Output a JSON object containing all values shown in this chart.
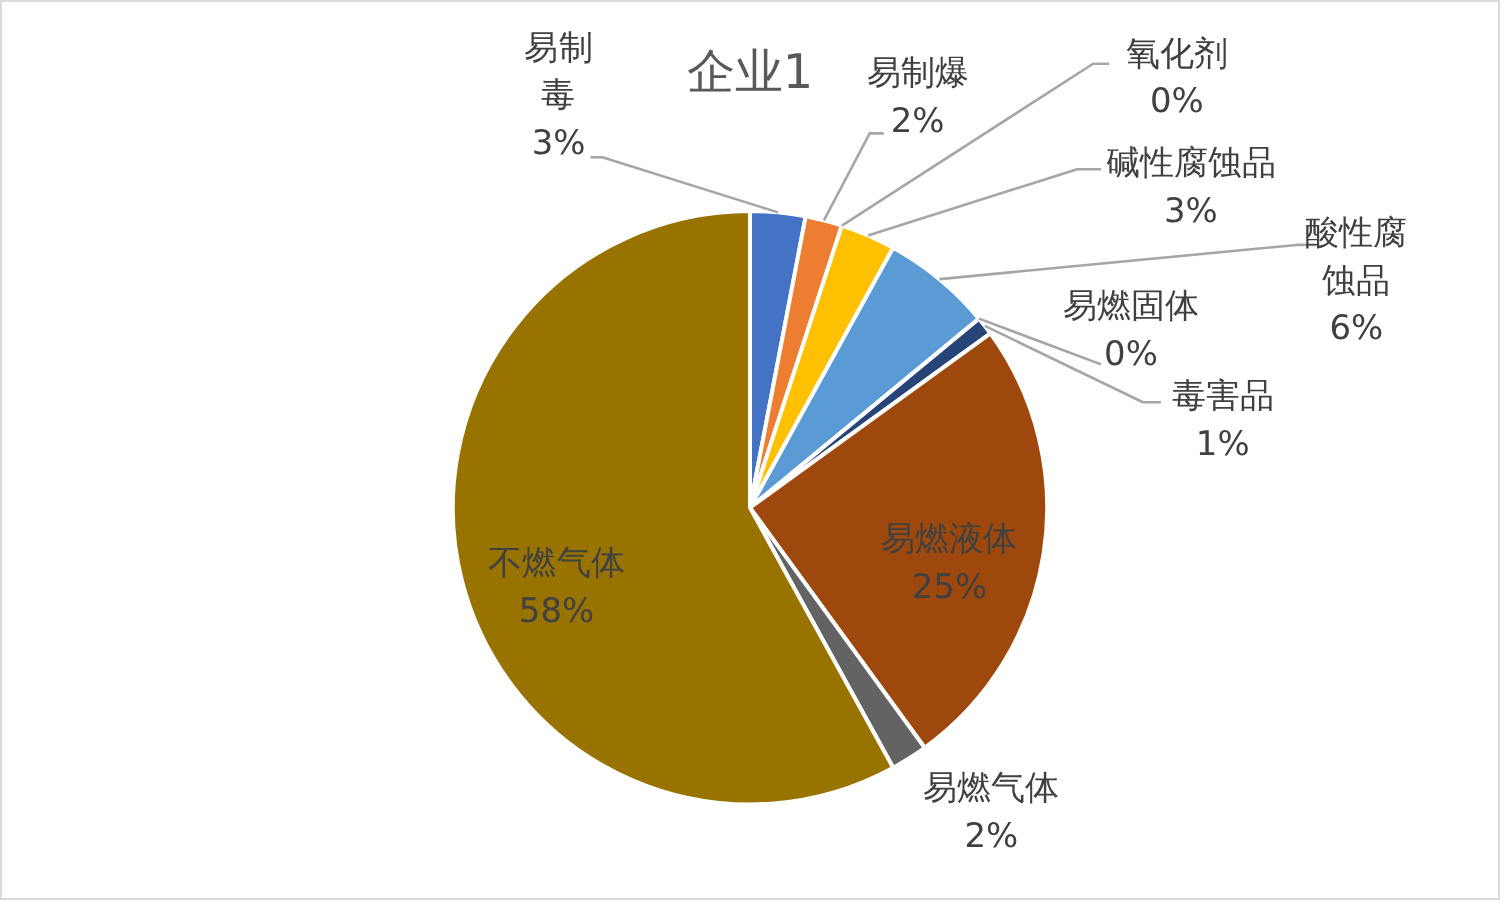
{
  "chart_data": {
    "type": "pie",
    "title": "企业1",
    "categories": [
      "易制毒",
      "易制爆",
      "氧化剂",
      "碱性腐蚀品",
      "酸性腐蚀品",
      "易燃固体",
      "毒害品",
      "易燃液体",
      "易燃气体",
      "不燃气体"
    ],
    "values": [
      3,
      2,
      0,
      3,
      6,
      0,
      1,
      25,
      2,
      58
    ],
    "value_labels": [
      "3%",
      "2%",
      "0%",
      "3%",
      "6%",
      "0%",
      "1%",
      "25%",
      "2%",
      "58%"
    ],
    "colors": [
      "#4472c4",
      "#ed7d31",
      "#a5a5a5",
      "#ffc000",
      "#5b9bd5",
      "#70ad47",
      "#264478",
      "#9e480e",
      "#636363",
      "#997300"
    ],
    "legend": false
  }
}
